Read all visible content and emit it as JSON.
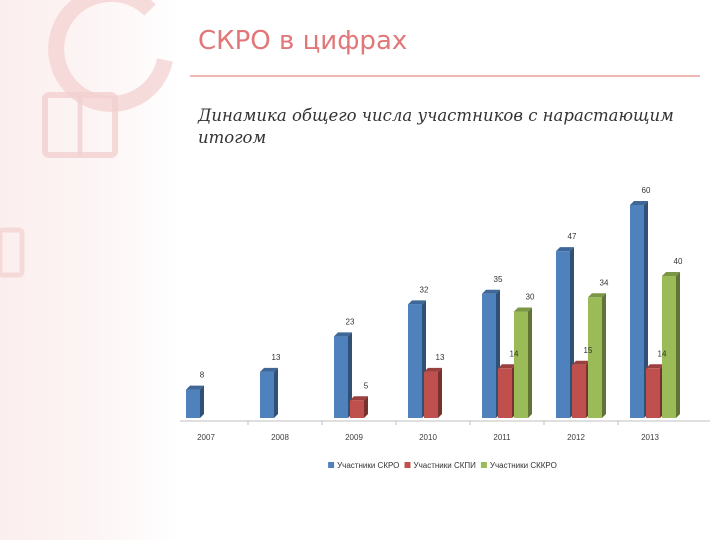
{
  "slide": {
    "title": "СКРО в цифрах",
    "subtitle": "Динамика общего числа участников с нарастающим итогом"
  },
  "colors": {
    "accent": "#e2777a",
    "rule": "#f0b7b2",
    "series": [
      "#4f81bd",
      "#c0504d",
      "#9bbb59"
    ]
  },
  "chart_data": {
    "type": "bar",
    "categories": [
      "2007",
      "2008",
      "2009",
      "2010",
      "2011",
      "2012",
      "2013"
    ],
    "series": [
      {
        "name": "Участники СКРО",
        "values": [
          8,
          13,
          23,
          32,
          35,
          47,
          60
        ]
      },
      {
        "name": "Участники СКПИ",
        "values": [
          null,
          null,
          5,
          13,
          14,
          15,
          14
        ]
      },
      {
        "name": "Участники СККРО",
        "values": [
          null,
          null,
          null,
          null,
          30,
          34,
          40
        ]
      }
    ],
    "ylim": [
      0,
      60
    ],
    "grid": false,
    "legend": "bottom",
    "data_labels": true
  }
}
